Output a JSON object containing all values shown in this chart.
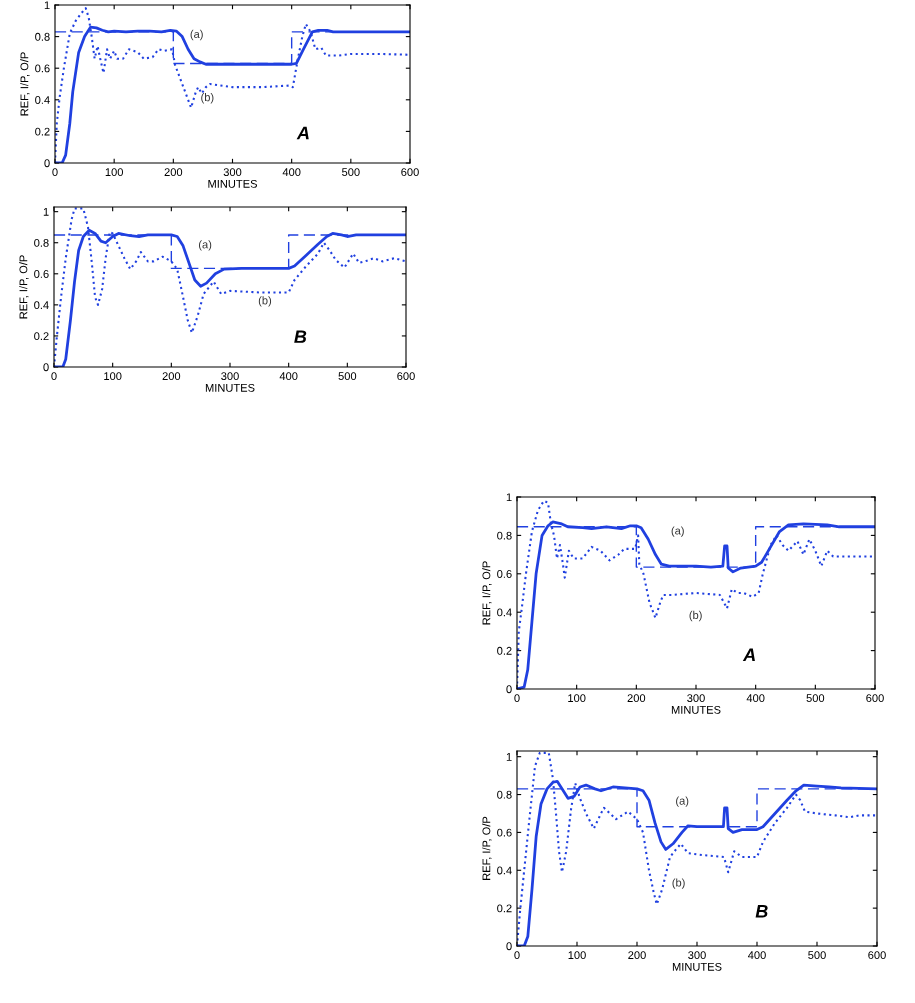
{
  "chart_data": [
    {
      "type": "line",
      "xlabel": "MINUTES",
      "ylabel": "REF, I/P, O/P",
      "xlim": [
        0,
        600
      ],
      "ylim": [
        0,
        1
      ],
      "xticks": [
        0,
        100,
        200,
        300,
        400,
        500,
        600
      ],
      "yticks": [
        0,
        0.2,
        0.4,
        0.6,
        0.8,
        1
      ],
      "series": [
        {
          "color": "#2040e0",
          "line_style": "dashed",
          "x": [
            0,
            200,
            200,
            400,
            400,
            600
          ],
          "values": [
            0.83,
            0.83,
            0.63,
            0.63,
            0.83,
            0.83
          ]
        },
        {
          "color": "#2040e0",
          "line_style": "solid",
          "x": [
            0,
            12,
            18,
            25,
            30,
            40,
            50,
            60,
            70,
            80,
            90,
            100,
            120,
            140,
            160,
            180,
            195,
            205,
            215,
            225,
            235,
            245,
            255,
            300,
            350,
            400,
            408,
            420,
            435,
            445,
            460,
            470,
            600
          ],
          "values": [
            0,
            0,
            0.05,
            0.25,
            0.45,
            0.7,
            0.8,
            0.86,
            0.855,
            0.84,
            0.83,
            0.835,
            0.83,
            0.835,
            0.835,
            0.83,
            0.84,
            0.835,
            0.8,
            0.72,
            0.66,
            0.64,
            0.625,
            0.625,
            0.625,
            0.625,
            0.63,
            0.72,
            0.83,
            0.84,
            0.84,
            0.83,
            0.83
          ]
        },
        {
          "color": "#2040e0",
          "line_style": "dotted",
          "x": [
            0,
            3,
            8,
            15,
            25,
            35,
            45,
            52,
            57,
            62,
            67,
            72,
            77,
            82,
            88,
            93,
            100,
            105,
            115,
            125,
            140,
            150,
            165,
            175,
            185,
            198,
            203,
            210,
            220,
            230,
            238,
            242,
            248,
            255,
            262,
            280,
            300,
            350,
            395,
            402,
            410,
            418,
            424,
            432,
            440,
            450,
            458,
            480,
            500,
            550,
            600
          ],
          "values": [
            0,
            0.25,
            0.42,
            0.6,
            0.82,
            0.9,
            0.95,
            0.98,
            0.92,
            0.8,
            0.66,
            0.74,
            0.65,
            0.57,
            0.72,
            0.66,
            0.71,
            0.66,
            0.66,
            0.72,
            0.7,
            0.66,
            0.67,
            0.72,
            0.71,
            0.72,
            0.62,
            0.55,
            0.45,
            0.35,
            0.45,
            0.48,
            0.44,
            0.48,
            0.5,
            0.49,
            0.48,
            0.48,
            0.49,
            0.48,
            0.65,
            0.8,
            0.88,
            0.83,
            0.72,
            0.73,
            0.68,
            0.68,
            0.69,
            0.69,
            0.685
          ]
        }
      ],
      "annotations": [
        "(a)",
        "(b)",
        "A"
      ]
    },
    {
      "type": "line",
      "xlabel": "MINUTES",
      "ylabel": "REF, I/P, O/P",
      "xlim": [
        0,
        600
      ],
      "ylim": [
        0,
        1.03
      ],
      "xticks": [
        0,
        100,
        200,
        300,
        400,
        500,
        600
      ],
      "yticks": [
        0,
        0.2,
        0.4,
        0.6,
        0.8,
        1
      ],
      "series": [
        {
          "color": "#2040e0",
          "line_style": "dashed",
          "x": [
            0,
            200,
            200,
            400,
            400,
            600
          ],
          "values": [
            0.85,
            0.85,
            0.635,
            0.635,
            0.85,
            0.85
          ]
        },
        {
          "color": "#2040e0",
          "line_style": "solid",
          "x": [
            0,
            15,
            20,
            28,
            35,
            42,
            50,
            60,
            70,
            80,
            88,
            100,
            110,
            130,
            145,
            160,
            180,
            200,
            210,
            220,
            230,
            240,
            250,
            260,
            275,
            290,
            320,
            360,
            400,
            410,
            430,
            450,
            465,
            475,
            490,
            500,
            515,
            540,
            600
          ],
          "values": [
            0,
            0,
            0.05,
            0.3,
            0.55,
            0.75,
            0.84,
            0.88,
            0.86,
            0.81,
            0.8,
            0.84,
            0.86,
            0.845,
            0.84,
            0.85,
            0.85,
            0.85,
            0.84,
            0.78,
            0.67,
            0.56,
            0.52,
            0.54,
            0.6,
            0.63,
            0.635,
            0.635,
            0.635,
            0.65,
            0.72,
            0.79,
            0.84,
            0.86,
            0.85,
            0.84,
            0.85,
            0.85,
            0.85
          ]
        },
        {
          "color": "#2040e0",
          "line_style": "dotted",
          "x": [
            0,
            5,
            12,
            20,
            30,
            35,
            50,
            58,
            65,
            70,
            75,
            82,
            88,
            95,
            100,
            110,
            120,
            130,
            140,
            148,
            160,
            170,
            185,
            200,
            210,
            220,
            228,
            235,
            245,
            255,
            272,
            285,
            300,
            350,
            400,
            410,
            430,
            450,
            460,
            470,
            480,
            495,
            510,
            520,
            530,
            545,
            560,
            580,
            600
          ],
          "values": [
            0,
            0.2,
            0.45,
            0.7,
            0.95,
            1.02,
            1.02,
            0.9,
            0.65,
            0.45,
            0.4,
            0.5,
            0.7,
            0.87,
            0.86,
            0.78,
            0.7,
            0.63,
            0.68,
            0.74,
            0.68,
            0.68,
            0.71,
            0.68,
            0.63,
            0.45,
            0.3,
            0.22,
            0.33,
            0.47,
            0.55,
            0.47,
            0.49,
            0.48,
            0.48,
            0.56,
            0.65,
            0.73,
            0.8,
            0.75,
            0.69,
            0.64,
            0.73,
            0.67,
            0.68,
            0.7,
            0.68,
            0.7,
            0.68
          ]
        }
      ],
      "annotations": [
        "(a)",
        "(b)",
        "B"
      ]
    },
    {
      "type": "line",
      "xlabel": "MINUTES",
      "ylabel": "REF, I/P, O/P",
      "xlim": [
        0,
        600
      ],
      "ylim": [
        0,
        1
      ],
      "xticks": [
        0,
        100,
        200,
        300,
        400,
        500,
        600
      ],
      "yticks": [
        0,
        0.2,
        0.4,
        0.6,
        0.8,
        1
      ],
      "series": [
        {
          "color": "#2040e0",
          "line_style": "dashed",
          "x": [
            0,
            200,
            200,
            400,
            400,
            600
          ],
          "values": [
            0.845,
            0.845,
            0.635,
            0.635,
            0.845,
            0.845
          ]
        },
        {
          "color": "#2040e0",
          "line_style": "solid",
          "x": [
            0,
            12,
            18,
            25,
            32,
            42,
            52,
            60,
            75,
            85,
            110,
            125,
            150,
            175,
            190,
            200,
            208,
            220,
            232,
            242,
            255,
            300,
            325,
            345,
            348,
            352,
            354,
            362,
            375,
            400,
            410,
            425,
            440,
            455,
            480,
            520,
            540,
            600
          ],
          "values": [
            0,
            0.01,
            0.1,
            0.35,
            0.6,
            0.8,
            0.85,
            0.87,
            0.86,
            0.845,
            0.84,
            0.835,
            0.845,
            0.835,
            0.85,
            0.85,
            0.84,
            0.78,
            0.7,
            0.65,
            0.64,
            0.64,
            0.635,
            0.64,
            0.745,
            0.745,
            0.63,
            0.61,
            0.63,
            0.64,
            0.66,
            0.74,
            0.82,
            0.855,
            0.86,
            0.855,
            0.845,
            0.845
          ]
        },
        {
          "color": "#2040e0",
          "line_style": "dotted",
          "x": [
            0,
            3,
            8,
            15,
            25,
            35,
            45,
            52,
            57,
            62,
            67,
            72,
            77,
            80,
            87,
            95,
            110,
            125,
            140,
            155,
            170,
            180,
            198,
            203,
            205,
            212,
            222,
            232,
            240,
            245,
            260,
            300,
            340,
            352,
            360,
            370,
            380,
            395,
            405,
            412,
            425,
            435,
            445,
            455,
            470,
            480,
            490,
            500,
            510,
            520,
            530,
            560,
            600
          ],
          "values": [
            0,
            0.3,
            0.42,
            0.6,
            0.82,
            0.93,
            0.98,
            0.97,
            0.86,
            0.8,
            0.68,
            0.75,
            0.65,
            0.58,
            0.72,
            0.68,
            0.68,
            0.74,
            0.72,
            0.67,
            0.7,
            0.73,
            0.73,
            0.8,
            0.65,
            0.6,
            0.45,
            0.37,
            0.45,
            0.49,
            0.49,
            0.5,
            0.49,
            0.42,
            0.52,
            0.5,
            0.5,
            0.48,
            0.5,
            0.6,
            0.75,
            0.8,
            0.75,
            0.72,
            0.77,
            0.7,
            0.78,
            0.72,
            0.64,
            0.72,
            0.69,
            0.69,
            0.69
          ]
        }
      ],
      "annotations": [
        "(a)",
        "(b)",
        "A"
      ]
    },
    {
      "type": "line",
      "xlabel": "MINUTES",
      "ylabel": "REF, I/P, O/P",
      "xlim": [
        0,
        600
      ],
      "ylim": [
        0,
        1.03
      ],
      "xticks": [
        0,
        100,
        200,
        300,
        400,
        500,
        600
      ],
      "yticks": [
        0,
        0.2,
        0.4,
        0.6,
        0.8,
        1
      ],
      "series": [
        {
          "color": "#2040e0",
          "line_style": "dashed",
          "x": [
            0,
            200,
            200,
            400,
            400,
            600
          ],
          "values": [
            0.83,
            0.83,
            0.63,
            0.63,
            0.83,
            0.83
          ]
        },
        {
          "color": "#2040e0",
          "line_style": "solid",
          "x": [
            0,
            12,
            18,
            25,
            32,
            40,
            50,
            60,
            67,
            75,
            85,
            95,
            105,
            115,
            130,
            140,
            160,
            200,
            210,
            220,
            230,
            240,
            248,
            260,
            275,
            285,
            300,
            344,
            346,
            350,
            352,
            360,
            375,
            400,
            410,
            430,
            450,
            465,
            478,
            500,
            520,
            540,
            600
          ],
          "values": [
            0,
            0,
            0.05,
            0.3,
            0.58,
            0.75,
            0.83,
            0.865,
            0.87,
            0.83,
            0.78,
            0.79,
            0.84,
            0.85,
            0.83,
            0.82,
            0.84,
            0.83,
            0.82,
            0.77,
            0.65,
            0.55,
            0.51,
            0.54,
            0.6,
            0.635,
            0.63,
            0.63,
            0.73,
            0.73,
            0.62,
            0.6,
            0.615,
            0.615,
            0.63,
            0.7,
            0.77,
            0.82,
            0.85,
            0.845,
            0.84,
            0.835,
            0.83
          ]
        },
        {
          "color": "#2040e0",
          "line_style": "dotted",
          "x": [
            0,
            5,
            12,
            20,
            30,
            38,
            53,
            60,
            65,
            70,
            75,
            82,
            90,
            97,
            105,
            115,
            128,
            140,
            145,
            165,
            185,
            200,
            210,
            220,
            228,
            233,
            242,
            255,
            265,
            273,
            285,
            310,
            345,
            352,
            362,
            375,
            400,
            410,
            430,
            450,
            465,
            472,
            480,
            500,
            530,
            555,
            570,
            600
          ],
          "values": [
            0,
            0.18,
            0.4,
            0.65,
            0.95,
            1.02,
            1.02,
            0.88,
            0.7,
            0.5,
            0.39,
            0.5,
            0.72,
            0.86,
            0.78,
            0.7,
            0.62,
            0.7,
            0.73,
            0.67,
            0.71,
            0.67,
            0.6,
            0.4,
            0.28,
            0.22,
            0.3,
            0.47,
            0.51,
            0.54,
            0.49,
            0.48,
            0.47,
            0.39,
            0.5,
            0.47,
            0.47,
            0.55,
            0.65,
            0.73,
            0.8,
            0.77,
            0.71,
            0.7,
            0.69,
            0.68,
            0.69,
            0.69
          ]
        }
      ],
      "annotations": [
        "(a)",
        "(b)",
        "B"
      ]
    }
  ]
}
